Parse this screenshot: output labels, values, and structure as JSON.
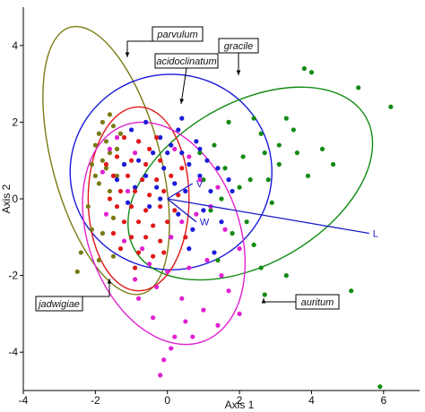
{
  "chart_data": {
    "type": "scatter",
    "xlabel": "Axis 1",
    "ylabel": "Axis 2",
    "xlim": [
      -4,
      7
    ],
    "ylim": [
      -5,
      5
    ],
    "x_ticks": [
      -4,
      -2,
      0,
      2,
      4,
      6
    ],
    "y_ticks": [
      -4,
      -2,
      0,
      2,
      4
    ],
    "grid": false,
    "colors": {
      "parvulum": "#7a7a14",
      "acidoclinatum": "#1a1ad8",
      "gracile": "#138a13",
      "jadwigiae": "#e01818",
      "auritum": "#e020d0",
      "vector": "#1c1cc8"
    },
    "series": [
      {
        "name": "parvulum",
        "ellipse": {
          "cx": -1.7,
          "cy": 1.0,
          "rx": 1.5,
          "ry": 3.6,
          "angle_deg": -15
        },
        "points": [
          [
            -1.8,
            2.0
          ],
          [
            -1.9,
            1.7
          ],
          [
            -1.7,
            1.5
          ],
          [
            -1.6,
            1.2
          ],
          [
            -2.0,
            1.4
          ],
          [
            -1.5,
            1.9
          ],
          [
            -1.8,
            1.0
          ],
          [
            -1.4,
            1.3
          ],
          [
            -1.7,
            0.8
          ],
          [
            -1.9,
            0.4
          ],
          [
            -2.1,
            0.9
          ],
          [
            -1.6,
            0.2
          ],
          [
            -2.2,
            -0.2
          ],
          [
            -2.1,
            -0.8
          ],
          [
            -1.8,
            -0.9
          ],
          [
            -1.5,
            -1.5
          ],
          [
            -1.9,
            -1.6
          ],
          [
            -2.4,
            -1.4
          ],
          [
            -2.5,
            -1.9
          ],
          [
            -1.3,
            1.7
          ],
          [
            -1.6,
            2.2
          ],
          [
            -2.0,
            0.6
          ],
          [
            -1.4,
            0.6
          ],
          [
            -1.2,
            0.9
          ],
          [
            -1.5,
            -0.5
          ]
        ]
      },
      {
        "name": "acidoclinatum",
        "ellipse": {
          "cx": 0.1,
          "cy": 0.7,
          "rx": 2.8,
          "ry": 2.55,
          "angle_deg": 0
        },
        "points": [
          [
            -1.0,
            1.8
          ],
          [
            -0.6,
            2.0
          ],
          [
            -0.2,
            1.6
          ],
          [
            0.1,
            1.4
          ],
          [
            0.4,
            1.2
          ],
          [
            -0.4,
            1.2
          ],
          [
            -0.8,
            1.0
          ],
          [
            -1.2,
            0.9
          ],
          [
            0.3,
            1.8
          ],
          [
            0.6,
            0.9
          ],
          [
            0.9,
            0.6
          ],
          [
            1.1,
            1.0
          ],
          [
            -0.1,
            0.8
          ],
          [
            0.2,
            0.4
          ],
          [
            0.5,
            0.2
          ],
          [
            -0.3,
            0.3
          ],
          [
            -0.9,
            0.3
          ],
          [
            1.4,
            0.8
          ],
          [
            1.7,
            0.5
          ],
          [
            -1.4,
            0.5
          ],
          [
            -0.6,
            0.6
          ],
          [
            0.0,
            1.2
          ],
          [
            0.8,
            1.5
          ],
          [
            1.2,
            0.2
          ],
          [
            -0.2,
            0.0
          ],
          [
            0.3,
            -0.4
          ],
          [
            0.7,
            -0.8
          ],
          [
            1.0,
            -0.3
          ],
          [
            -0.5,
            -0.2
          ],
          [
            -1.1,
            -0.1
          ],
          [
            0.1,
            -1.0
          ],
          [
            0.6,
            -1.3
          ],
          [
            1.5,
            -0.6
          ],
          [
            -0.8,
            1.5
          ],
          [
            0.9,
            1.3
          ],
          [
            1.8,
            0.2
          ],
          [
            1.3,
            -1.4
          ],
          [
            0.4,
            2.1
          ]
        ]
      },
      {
        "name": "gracile",
        "ellipse": {
          "cx": 2.3,
          "cy": 0.4,
          "rx": 3.7,
          "ry": 2.1,
          "angle_deg": -30
        },
        "points": [
          [
            3.8,
            3.4
          ],
          [
            4.0,
            3.3
          ],
          [
            5.3,
            2.9
          ],
          [
            6.2,
            2.4
          ],
          [
            2.4,
            2.1
          ],
          [
            3.3,
            2.1
          ],
          [
            1.7,
            2.0
          ],
          [
            2.6,
            1.7
          ],
          [
            3.5,
            1.8
          ],
          [
            3.1,
            1.4
          ],
          [
            4.3,
            1.3
          ],
          [
            4.6,
            0.9
          ],
          [
            3.9,
            0.6
          ],
          [
            2.3,
            0.5
          ],
          [
            2.8,
            0.5
          ],
          [
            1.6,
            0.8
          ],
          [
            2.1,
            1.1
          ],
          [
            3.1,
            0.9
          ],
          [
            1.3,
            1.4
          ],
          [
            0.9,
            1.2
          ],
          [
            2.7,
            1.2
          ],
          [
            3.6,
            1.2
          ],
          [
            1.0,
            0.5
          ],
          [
            2.0,
            0.3
          ],
          [
            2.9,
            -0.1
          ],
          [
            1.5,
            0.0
          ],
          [
            1.2,
            -0.3
          ],
          [
            2.2,
            -0.6
          ],
          [
            1.8,
            -0.9
          ],
          [
            2.4,
            -1.2
          ],
          [
            2.6,
            -1.8
          ],
          [
            1.4,
            -1.6
          ],
          [
            2.7,
            -2.5
          ],
          [
            3.3,
            -2.0
          ],
          [
            5.1,
            -2.4
          ],
          [
            5.9,
            -4.9
          ]
        ]
      },
      {
        "name": "jadwigiae",
        "ellipse": {
          "cx": -0.8,
          "cy": 0.0,
          "rx": 1.4,
          "ry": 2.4,
          "angle_deg": 0
        },
        "points": [
          [
            -1.2,
            1.6
          ],
          [
            -0.8,
            1.5
          ],
          [
            -0.5,
            1.3
          ],
          [
            -1.4,
            1.1
          ],
          [
            -1.0,
            1.0
          ],
          [
            -0.6,
            0.9
          ],
          [
            -0.2,
            1.0
          ],
          [
            -1.5,
            0.6
          ],
          [
            -1.1,
            0.6
          ],
          [
            -0.7,
            0.5
          ],
          [
            -0.3,
            0.5
          ],
          [
            0.1,
            0.6
          ],
          [
            -1.3,
            0.2
          ],
          [
            -0.9,
            0.2
          ],
          [
            -0.5,
            0.1
          ],
          [
            -0.1,
            0.2
          ],
          [
            0.3,
            0.1
          ],
          [
            -1.4,
            -0.2
          ],
          [
            -1.0,
            -0.2
          ],
          [
            -0.6,
            -0.3
          ],
          [
            -0.2,
            -0.2
          ],
          [
            0.2,
            -0.3
          ],
          [
            -1.2,
            -0.6
          ],
          [
            -0.8,
            -0.6
          ],
          [
            -0.4,
            -0.7
          ],
          [
            0.0,
            -0.6
          ],
          [
            -1.0,
            -1.0
          ],
          [
            -0.6,
            -1.0
          ],
          [
            -0.2,
            -1.1
          ],
          [
            -1.3,
            -1.3
          ],
          [
            -0.8,
            -1.4
          ],
          [
            -0.4,
            -1.5
          ],
          [
            -0.9,
            -1.8
          ],
          [
            -1.5,
            -0.9
          ],
          [
            -1.6,
            0.0
          ],
          [
            -0.3,
            1.6
          ],
          [
            0.4,
            0.8
          ],
          [
            0.5,
            -1.0
          ],
          [
            -1.7,
            0.9
          ],
          [
            -0.1,
            -1.4
          ]
        ]
      },
      {
        "name": "auritum",
        "ellipse": {
          "cx": -0.1,
          "cy": -0.9,
          "rx": 2.1,
          "ry": 3.0,
          "angle_deg": -20
        },
        "points": [
          [
            -1.6,
            1.3
          ],
          [
            -1.4,
            1.6
          ],
          [
            -0.9,
            1.2
          ],
          [
            0.2,
            1.3
          ],
          [
            0.6,
            1.1
          ],
          [
            -1.7,
            -0.4
          ],
          [
            -1.2,
            -1.1
          ],
          [
            -0.7,
            -1.3
          ],
          [
            0.1,
            -1.0
          ],
          [
            0.4,
            -0.6
          ],
          [
            0.8,
            -0.4
          ],
          [
            1.2,
            -0.2
          ],
          [
            1.6,
            -0.8
          ],
          [
            2.0,
            -1.3
          ],
          [
            -0.5,
            -1.7
          ],
          [
            0.0,
            -1.9
          ],
          [
            0.6,
            -1.8
          ],
          [
            1.1,
            -1.6
          ],
          [
            1.5,
            -2.0
          ],
          [
            -0.3,
            -2.3
          ],
          [
            0.4,
            -2.6
          ],
          [
            1.0,
            -2.9
          ],
          [
            1.7,
            -2.4
          ],
          [
            -0.9,
            -2.1
          ],
          [
            0.5,
            -3.2
          ],
          [
            1.4,
            -3.3
          ],
          [
            2.0,
            -3.0
          ],
          [
            0.2,
            -3.6
          ],
          [
            0.7,
            -3.6
          ],
          [
            -0.4,
            -3.1
          ],
          [
            -0.8,
            -2.6
          ],
          [
            -1.1,
            0.2
          ],
          [
            -1.8,
            0.7
          ],
          [
            0.9,
            0.5
          ],
          [
            1.4,
            0.3
          ],
          [
            -0.1,
            -4.2
          ],
          [
            -0.2,
            -4.6
          ],
          [
            0.1,
            -3.9
          ]
        ]
      }
    ],
    "vectors": [
      {
        "label": "L",
        "from": [
          0,
          0
        ],
        "to": [
          5.6,
          -0.9
        ]
      },
      {
        "label": "W",
        "from": [
          0,
          0
        ],
        "to": [
          0.8,
          -0.6
        ]
      },
      {
        "label": "V",
        "from": [
          0,
          0
        ],
        "to": [
          0.7,
          0.4
        ]
      }
    ],
    "annotations": [
      {
        "text": "parvulum",
        "target_series": "parvulum"
      },
      {
        "text": "acidoclinatum",
        "target_series": "acidoclinatum"
      },
      {
        "text": "gracile",
        "target_series": "gracile"
      },
      {
        "text": "jadwigiae",
        "target_series": "jadwigiae"
      },
      {
        "text": "auritum",
        "target_series": "auritum"
      }
    ]
  }
}
